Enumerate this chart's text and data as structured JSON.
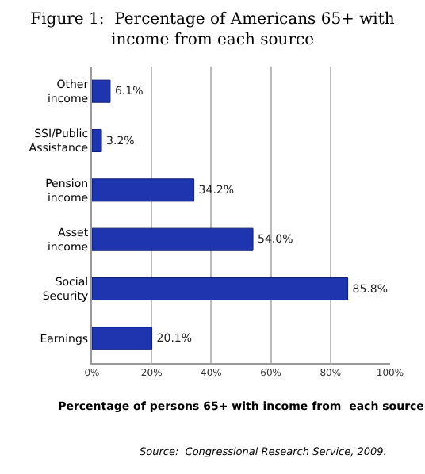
{
  "chart_data": {
    "type": "bar",
    "orientation": "horizontal",
    "title": "Figure 1:  Percentage of Americans 65+ with income from each source",
    "xlabel": "Percentage of persons 65+ with income from  each source",
    "annotations": [
      "Source:  Congressional Research Service, 2009."
    ],
    "categories": [
      "Other income",
      "SSI/Public Assistance",
      "Pension income",
      "Asset income",
      "Social Security",
      "Earnings"
    ],
    "values": [
      6.1,
      3.2,
      34.2,
      54.0,
      85.8,
      20.1
    ],
    "value_labels": [
      "6.1%",
      "3.2%",
      "34.2%",
      "54.0%",
      "85.8%",
      "20.1%"
    ],
    "color": "#1f35b0",
    "xlim": [
      0,
      100
    ],
    "xticks": [
      {
        "value": 0,
        "label": "0%"
      },
      {
        "value": 20,
        "label": "20%"
      },
      {
        "value": 40,
        "label": "40%"
      },
      {
        "value": 60,
        "label": "60%"
      },
      {
        "value": 80,
        "label": "80%"
      },
      {
        "value": 100,
        "label": "100%"
      }
    ],
    "grid": "x"
  }
}
